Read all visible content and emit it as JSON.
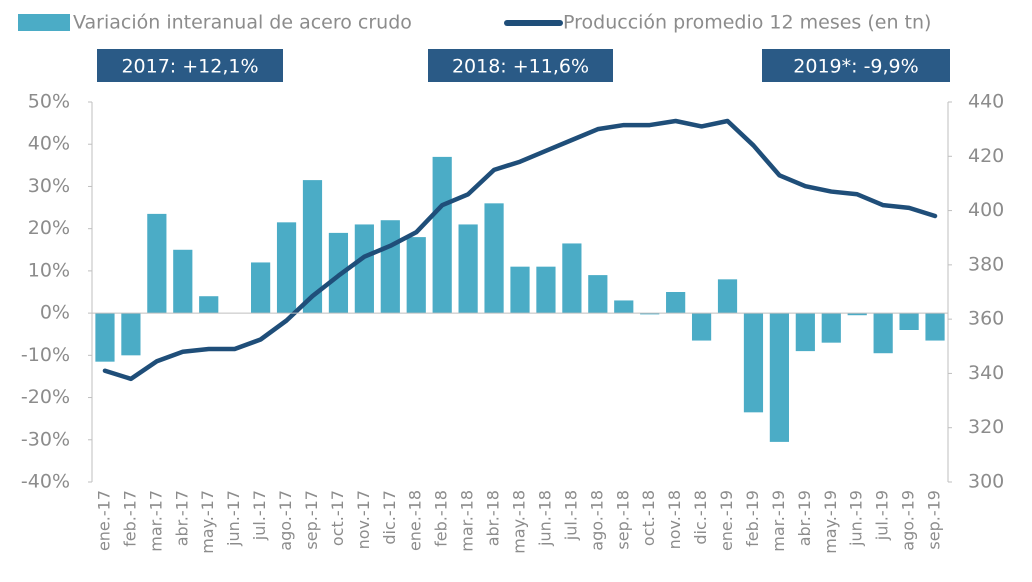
{
  "chart_data": {
    "type": "bar-line",
    "annotations": [
      "2017: +12,1%",
      "2018: +11,6%",
      "2019*: -9,9%"
    ],
    "categories": [
      "ene.-17",
      "feb.-17",
      "mar.-17",
      "abr.-17",
      "may.-17",
      "jun.-17",
      "jul.-17",
      "ago.-17",
      "sep.-17",
      "oct.-17",
      "nov.-17",
      "dic.-17",
      "ene.-18",
      "feb.-18",
      "mar.-18",
      "abr.-18",
      "may.-18",
      "jun.-18",
      "jul.-18",
      "ago.-18",
      "sep.-18",
      "oct.-18",
      "nov.-18",
      "dic.-18",
      "ene.-19",
      "feb.-19",
      "mar.-19",
      "abr.-19",
      "may.-19",
      "jun.-19",
      "jul.-19",
      "ago.-19",
      "sep.-19"
    ],
    "series": [
      {
        "name": "Variación interanual de acero crudo",
        "color": "#4bacc6",
        "axis": "y",
        "values": [
          -11.5,
          -10,
          23.5,
          15,
          4,
          0,
          12,
          21.5,
          31.5,
          19,
          21,
          22,
          18,
          37,
          21,
          26,
          11,
          11,
          16.5,
          9,
          3,
          -0.3,
          5,
          -6.5,
          8,
          -23.5,
          -30.5,
          -9,
          -7,
          -0.5,
          -9.5,
          -4,
          -6.5
        ]
      },
      {
        "name": "Producción promedio 12 meses (en tn)",
        "color": "#1f4e79",
        "axis": "y2",
        "values": [
          341,
          338,
          344.5,
          348,
          349,
          349,
          352.5,
          359.5,
          368.5,
          376,
          383,
          387,
          392,
          402,
          406,
          415,
          418,
          422,
          426,
          430,
          431.5,
          431.5,
          433,
          431,
          433,
          424,
          413,
          409,
          407,
          406,
          402,
          401,
          398
        ]
      }
    ],
    "ylim": [
      -40,
      50
    ],
    "yticks": [
      {
        "value": -40,
        "label": "-40%"
      },
      {
        "value": -30,
        "label": "-30%"
      },
      {
        "value": -20,
        "label": "-20%"
      },
      {
        "value": -10,
        "label": "-10%"
      },
      {
        "value": 0,
        "label": "0%"
      },
      {
        "value": 10,
        "label": "10%"
      },
      {
        "value": 20,
        "label": "20%"
      },
      {
        "value": 30,
        "label": "30%"
      },
      {
        "value": 40,
        "label": "40%"
      },
      {
        "value": 50,
        "label": "50%"
      }
    ],
    "y2lim": [
      300,
      440
    ],
    "y2ticks": [
      300,
      320,
      340,
      360,
      380,
      400,
      420,
      440
    ]
  }
}
